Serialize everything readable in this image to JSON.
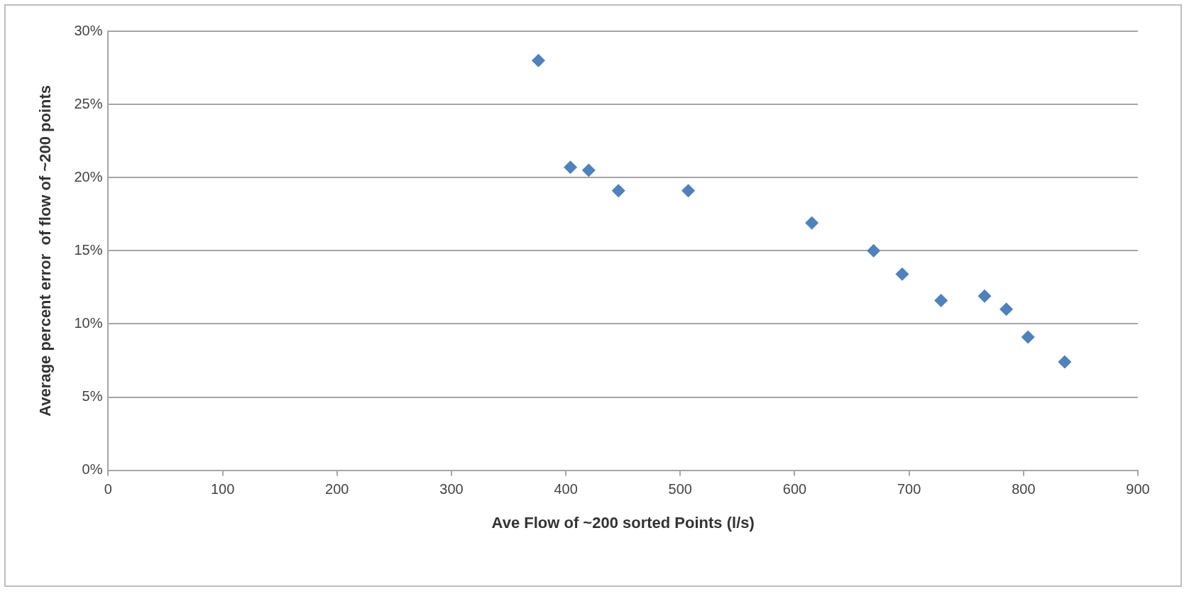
{
  "chart_data": {
    "type": "scatter",
    "xlabel": "Ave Flow of ~200 sorted Points (l/s)",
    "ylabel": "Average percent error  of flow of ~200 points",
    "x": [
      376,
      404,
      420,
      446,
      507,
      615,
      669,
      694,
      728,
      766,
      785,
      804,
      836
    ],
    "series": [
      {
        "color": "#4f81bd",
        "values": [
          28.0,
          20.7,
          20.5,
          19.1,
          19.1,
          16.9,
          15.0,
          13.4,
          11.6,
          11.9,
          11.0,
          9.1,
          7.4
        ]
      }
    ],
    "xlim": [
      0,
      900
    ],
    "xticks": [
      0,
      100,
      200,
      300,
      400,
      500,
      600,
      700,
      800,
      900
    ],
    "ylim": [
      0,
      30
    ],
    "yticks": [
      {
        "value": 0,
        "label": "0%"
      },
      {
        "value": 5,
        "label": "5%"
      },
      {
        "value": 10,
        "label": "10%"
      },
      {
        "value": 15,
        "label": "15%"
      },
      {
        "value": 20,
        "label": "20%"
      },
      {
        "value": 25,
        "label": "25%"
      },
      {
        "value": 30,
        "label": "30%"
      }
    ],
    "grid": "y",
    "legend": false,
    "marker": "diamond"
  }
}
